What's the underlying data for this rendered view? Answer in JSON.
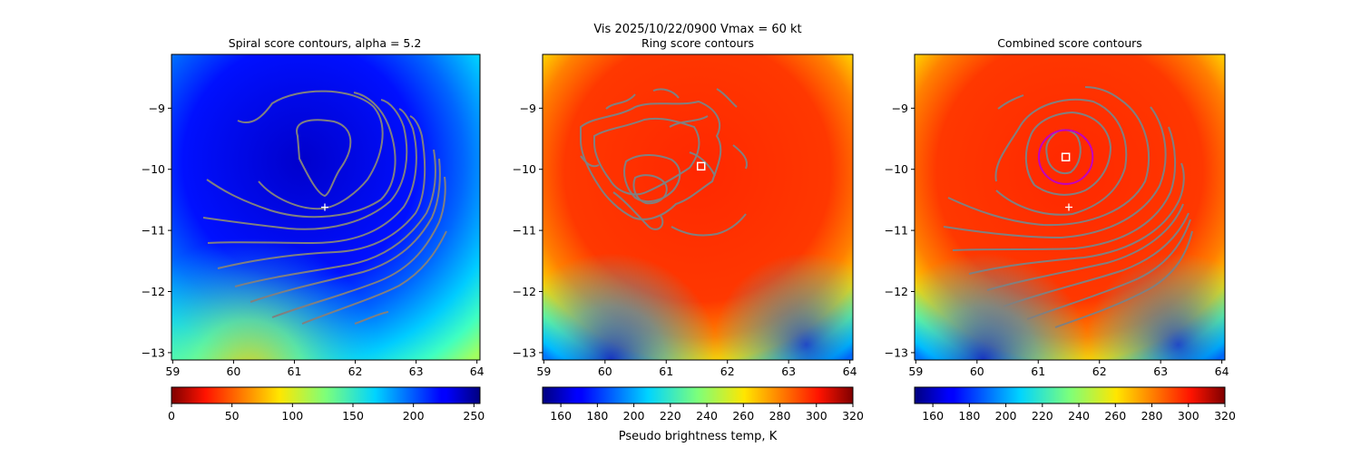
{
  "suptitle": "Vis  2025/10/22/0900    Vmax = 60 kt",
  "colors": {
    "contour": "#808080",
    "marker": "#ffffff",
    "circle": "#c000c0"
  },
  "panels": [
    {
      "title": "Spiral score contours, alpha =  5.2",
      "colormap": "jet_r",
      "cbar_ticks": [
        "0",
        "50",
        "100",
        "150",
        "200",
        "250"
      ],
      "cbar_label": ""
    },
    {
      "title": "Ring score contours",
      "colormap": "jet",
      "cbar_ticks": [
        "160",
        "180",
        "200",
        "220",
        "240",
        "260",
        "280",
        "300",
        "320"
      ],
      "cbar_label": "Pseudo brightness temp, K"
    },
    {
      "title": "Combined score contours",
      "colormap": "jet",
      "cbar_ticks": [
        "160",
        "180",
        "200",
        "220",
        "240",
        "260",
        "280",
        "300",
        "320"
      ],
      "cbar_label": ""
    }
  ],
  "chart_data": [
    {
      "type": "heatmap",
      "title": "Spiral score contours, alpha =  5.2",
      "xlim": [
        58.98,
        64.05
      ],
      "ylim": [
        -13.12,
        -8.12
      ],
      "xticks": [
        "59",
        "60",
        "61",
        "62",
        "63",
        "64"
      ],
      "yticks": [
        "-9",
        "-10",
        "-11",
        "-12",
        "-13"
      ],
      "colorbar": {
        "min": 0,
        "max": 255,
        "ticks": [
          0,
          50,
          100,
          150,
          200,
          250
        ],
        "colormap": "jet_r"
      },
      "markers": [
        {
          "type": "plus",
          "x": 61.5,
          "y": -10.62
        }
      ]
    },
    {
      "type": "heatmap",
      "title": "Ring score contours",
      "xlim": [
        58.98,
        64.05
      ],
      "ylim": [
        -13.12,
        -8.12
      ],
      "xticks": [
        "59",
        "60",
        "61",
        "62",
        "63",
        "64"
      ],
      "yticks": [
        "-9",
        "-10",
        "-11",
        "-12",
        "-13"
      ],
      "colorbar": {
        "min": 150,
        "max": 320,
        "ticks": [
          160,
          180,
          200,
          220,
          240,
          260,
          280,
          300,
          320
        ],
        "colormap": "jet",
        "label": "Pseudo brightness temp, K"
      },
      "markers": [
        {
          "type": "square",
          "x": 61.57,
          "y": -9.95
        }
      ]
    },
    {
      "type": "heatmap",
      "title": "Combined score contours",
      "xlim": [
        58.98,
        64.05
      ],
      "ylim": [
        -13.12,
        -8.12
      ],
      "xticks": [
        "59",
        "60",
        "61",
        "62",
        "63",
        "64"
      ],
      "yticks": [
        "-9",
        "-10",
        "-11",
        "-12",
        "-13"
      ],
      "colorbar": {
        "min": 150,
        "max": 320,
        "ticks": [
          160,
          180,
          200,
          220,
          240,
          260,
          280,
          300,
          320
        ],
        "colormap": "jet"
      },
      "markers": [
        {
          "type": "square",
          "x": 61.45,
          "y": -9.8
        },
        {
          "type": "plus",
          "x": 61.5,
          "y": -10.62
        },
        {
          "type": "circle",
          "x": 61.45,
          "y": -9.8,
          "r": 0.44
        }
      ]
    }
  ]
}
